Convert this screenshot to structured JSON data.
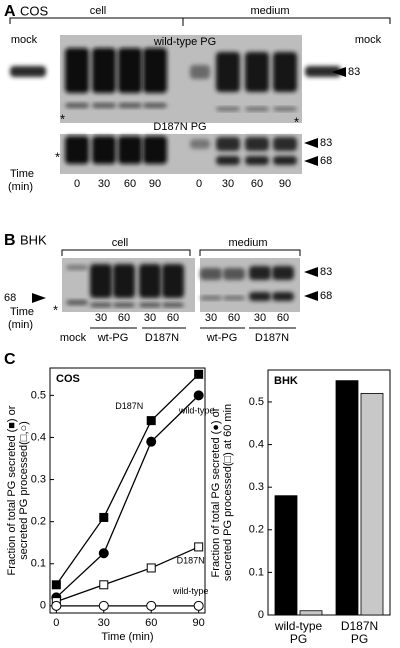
{
  "panel_a": {
    "letter": "A",
    "cell_line": "COS",
    "cell": "cell",
    "medium": "medium",
    "mock_left": "mock",
    "wild_type": "wild-type PG",
    "mock_right": "mock",
    "marker_83": "83",
    "asterisk_left": "*",
    "asterisk_right": "*",
    "mutant": "D187N PG",
    "marker_83b": "83",
    "marker_68": "68",
    "asterisk_lower": "*",
    "time": "Time",
    "time_unit": "(min)",
    "times": [
      "0",
      "30",
      "60",
      "90",
      "0",
      "30",
      "60",
      "90"
    ]
  },
  "panel_b": {
    "letter": "B",
    "cell_line": "BHK",
    "cell": "cell",
    "medium": "medium",
    "marker_83": "83",
    "marker_68": "68",
    "marker_68_left": "68",
    "asterisk": "*",
    "time": "Time",
    "time_unit": "(min)",
    "times": [
      "30",
      "60",
      "30",
      "60",
      "30",
      "60",
      "30",
      "60"
    ],
    "lanes": [
      "mock",
      "wt-PG",
      "D187N",
      "wt-PG",
      "D187N"
    ]
  },
  "panel_c": {
    "letter": "C"
  },
  "chart_data": [
    {
      "type": "line",
      "title": "COS",
      "x_label": "Time (min)",
      "y_label": [
        "Fraction of total PG secreted (■) or",
        "secreted PG processed(□,○)"
      ],
      "x": [
        0,
        30,
        60,
        90
      ],
      "xlim": [
        -4,
        94
      ],
      "xticks": [
        0,
        30,
        60,
        90
      ],
      "ylim": [
        -0.017,
        0.565
      ],
      "yticks": [
        0,
        0.1,
        0.2,
        0.3,
        0.4,
        0.5
      ],
      "series": [
        {
          "name": "D187N",
          "marker": "square",
          "filled": true,
          "color": "#000000",
          "values": [
            0.05,
            0.21,
            0.44,
            0.55
          ]
        },
        {
          "name": "wild-type",
          "marker": "circle",
          "filled": true,
          "color": "#000000",
          "values": [
            0.02,
            0.125,
            0.39,
            0.5
          ]
        },
        {
          "name": "D187N",
          "marker": "square",
          "filled": false,
          "color": "#000000",
          "values": [
            0.01,
            0.05,
            0.09,
            0.14
          ]
        },
        {
          "name": "wild-type",
          "marker": "circle",
          "filled": false,
          "color": "#000000",
          "values": [
            0,
            0,
            0,
            0
          ]
        }
      ]
    },
    {
      "type": "bar",
      "title": "BHK",
      "y_label": [
        "Fraction of total PG secreted (●) or",
        "secreted PG processed(□) at 60 min"
      ],
      "categories": [
        [
          "wild-type",
          "PG"
        ],
        [
          "D187N",
          "PG"
        ]
      ],
      "ylim": [
        0,
        0.575
      ],
      "yticks": [
        0,
        0.1,
        0.2,
        0.3,
        0.4,
        0.5
      ],
      "series": [
        {
          "color": "#000000",
          "values": [
            0.28,
            0.55
          ]
        },
        {
          "color": "#c8c8c8",
          "values": [
            0.01,
            0.52
          ]
        }
      ]
    }
  ]
}
